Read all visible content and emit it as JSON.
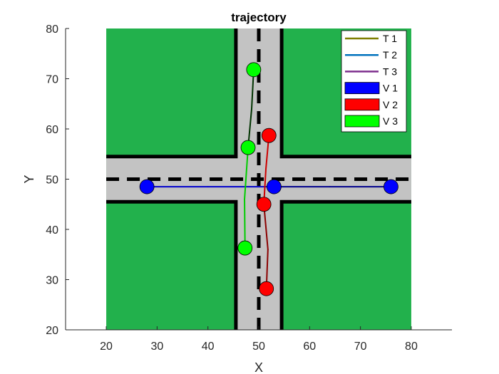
{
  "chart_data": {
    "type": "line",
    "title": "trajectory",
    "xlabel": "X",
    "ylabel": "Y",
    "xlim": [
      12,
      88
    ],
    "ylim": [
      20,
      80
    ],
    "xticks": [
      20,
      30,
      40,
      50,
      60,
      70,
      80
    ],
    "yticks": [
      20,
      30,
      40,
      50,
      60,
      70,
      80
    ],
    "grid": false,
    "legend_location": "top-right",
    "background_map": {
      "grass_color": "#22b14c",
      "road_color": "#c3c3c3",
      "grass_extent_x": [
        20,
        80
      ],
      "grass_extent_y": [
        20,
        80
      ],
      "vertical_road_x": [
        45.5,
        54.5
      ],
      "horizontal_road_y": [
        45.5,
        54.5
      ],
      "center_x": 50,
      "center_y": 50
    },
    "series": [
      {
        "name": "T 1",
        "color": "#7f7f00",
        "x": [
          28.0,
          40.0,
          53.0,
          64.0,
          76.0
        ],
        "y": [
          48.5,
          48.5,
          48.5,
          48.5,
          48.5
        ]
      },
      {
        "name": "T 2",
        "color": "#0072bd",
        "x": [
          51.5,
          51.8,
          51.0,
          51.4,
          52.0
        ],
        "y": [
          28.2,
          36.0,
          45.0,
          52.0,
          58.7
        ]
      },
      {
        "name": "T 3",
        "color": "#7e2f8e",
        "x": [
          47.3,
          47.2,
          47.9,
          48.6,
          49.0
        ],
        "y": [
          36.3,
          46.0,
          56.3,
          64.0,
          71.8
        ]
      }
    ],
    "vehicles": [
      {
        "name": "V 1",
        "color": "#0000ff",
        "positions": [
          {
            "x": 28.0,
            "y": 48.5
          },
          {
            "x": 53.0,
            "y": 48.5
          },
          {
            "x": 76.0,
            "y": 48.5
          }
        ]
      },
      {
        "name": "V 2",
        "color": "#ff0000",
        "positions": [
          {
            "x": 51.5,
            "y": 28.2
          },
          {
            "x": 51.0,
            "y": 45.0
          },
          {
            "x": 52.0,
            "y": 58.7
          }
        ]
      },
      {
        "name": "V 3",
        "color": "#00ff00",
        "positions": [
          {
            "x": 47.3,
            "y": 36.3
          },
          {
            "x": 47.9,
            "y": 56.3
          },
          {
            "x": 49.0,
            "y": 71.8
          }
        ]
      }
    ]
  }
}
